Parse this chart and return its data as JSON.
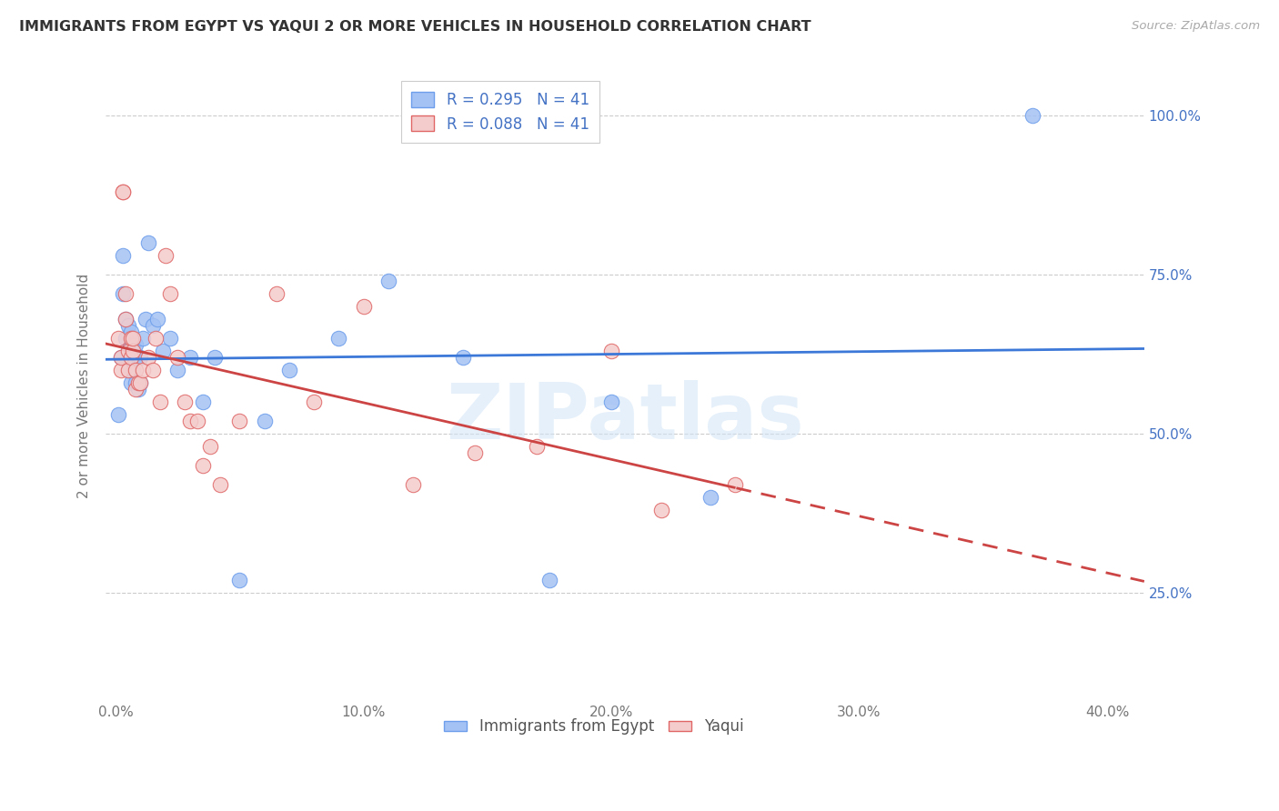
{
  "title": "IMMIGRANTS FROM EGYPT VS YAQUI 2 OR MORE VEHICLES IN HOUSEHOLD CORRELATION CHART",
  "source": "Source: ZipAtlas.com",
  "ylabel": "2 or more Vehicles in Household",
  "legend_label_1": "Immigrants from Egypt",
  "legend_label_2": "Yaqui",
  "xlim": [
    -0.004,
    0.415
  ],
  "ylim": [
    0.08,
    1.07
  ],
  "xtick_labels": [
    "0.0%",
    "10.0%",
    "20.0%",
    "30.0%",
    "40.0%"
  ],
  "xtick_vals": [
    0.0,
    0.1,
    0.2,
    0.3,
    0.4
  ],
  "ytick_labels": [
    "25.0%",
    "50.0%",
    "75.0%",
    "100.0%"
  ],
  "ytick_vals": [
    0.25,
    0.5,
    0.75,
    1.0
  ],
  "blue_dot_color": "#a4c2f4",
  "pink_dot_color": "#f4cccc",
  "blue_dot_edge": "#6d9eeb",
  "pink_dot_edge": "#e06666",
  "blue_line_color": "#3c78d8",
  "pink_line_color": "#cc4444",
  "right_tick_color": "#4472c4",
  "legend_r1": "R = 0.295",
  "legend_n1": "N = 41",
  "legend_r2": "R = 0.088",
  "legend_n2": "N = 41",
  "watermark_text": "ZIPatlas",
  "blue_x": [
    0.001,
    0.002,
    0.003,
    0.003,
    0.004,
    0.004,
    0.005,
    0.005,
    0.005,
    0.006,
    0.006,
    0.006,
    0.007,
    0.007,
    0.008,
    0.008,
    0.009,
    0.009,
    0.01,
    0.01,
    0.011,
    0.012,
    0.013,
    0.015,
    0.017,
    0.019,
    0.022,
    0.025,
    0.03,
    0.035,
    0.04,
    0.05,
    0.06,
    0.07,
    0.09,
    0.11,
    0.14,
    0.175,
    0.2,
    0.24,
    0.37
  ],
  "blue_y": [
    0.53,
    0.62,
    0.78,
    0.72,
    0.65,
    0.68,
    0.67,
    0.63,
    0.6,
    0.66,
    0.62,
    0.58,
    0.64,
    0.6,
    0.64,
    0.58,
    0.62,
    0.57,
    0.62,
    0.58,
    0.65,
    0.68,
    0.8,
    0.67,
    0.68,
    0.63,
    0.65,
    0.6,
    0.62,
    0.55,
    0.62,
    0.27,
    0.52,
    0.6,
    0.65,
    0.74,
    0.62,
    0.27,
    0.55,
    0.4,
    1.0
  ],
  "pink_x": [
    0.001,
    0.002,
    0.002,
    0.003,
    0.003,
    0.004,
    0.004,
    0.005,
    0.005,
    0.006,
    0.006,
    0.007,
    0.007,
    0.008,
    0.008,
    0.009,
    0.01,
    0.011,
    0.013,
    0.015,
    0.016,
    0.018,
    0.02,
    0.022,
    0.025,
    0.028,
    0.03,
    0.033,
    0.035,
    0.038,
    0.042,
    0.05,
    0.065,
    0.08,
    0.1,
    0.12,
    0.145,
    0.17,
    0.2,
    0.22,
    0.25
  ],
  "pink_y": [
    0.65,
    0.6,
    0.62,
    0.88,
    0.88,
    0.68,
    0.72,
    0.63,
    0.6,
    0.65,
    0.62,
    0.63,
    0.65,
    0.6,
    0.57,
    0.58,
    0.58,
    0.6,
    0.62,
    0.6,
    0.65,
    0.55,
    0.78,
    0.72,
    0.62,
    0.55,
    0.52,
    0.52,
    0.45,
    0.48,
    0.42,
    0.52,
    0.72,
    0.55,
    0.7,
    0.42,
    0.47,
    0.48,
    0.63,
    0.38,
    0.42
  ]
}
